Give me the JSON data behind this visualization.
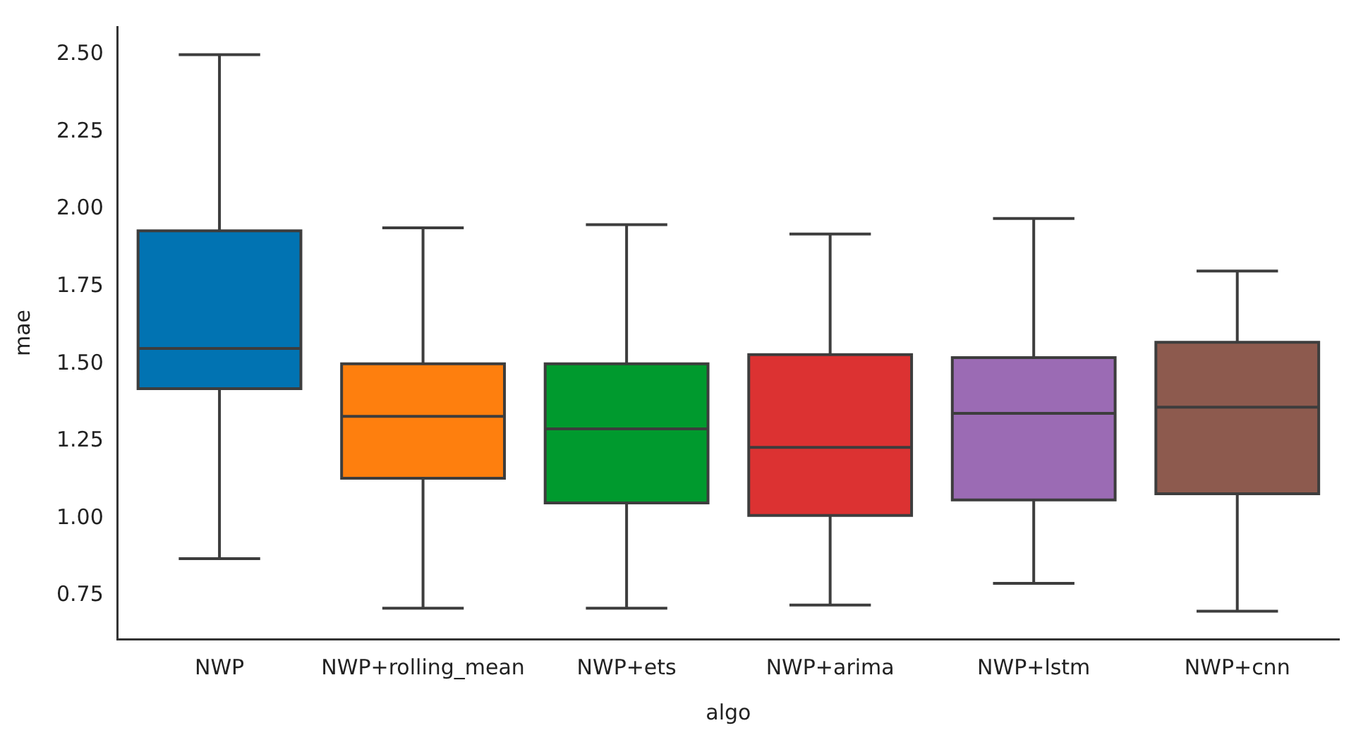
{
  "chart_data": {
    "type": "box",
    "xlabel": "algo",
    "ylabel": "mae",
    "categories": [
      "NWP",
      "NWP+rolling_mean",
      "NWP+ets",
      "NWP+arima",
      "NWP+lstm",
      "NWP+cnn"
    ],
    "colors": [
      "#0173b2",
      "#fe7f0e",
      "#009a2e",
      "#dc3232",
      "#9b6bb4",
      "#8d5a4e"
    ],
    "boxes": [
      {
        "low": 0.87,
        "q1": 1.42,
        "median": 1.55,
        "q3": 1.93,
        "high": 2.5
      },
      {
        "low": 0.71,
        "q1": 1.13,
        "median": 1.33,
        "q3": 1.5,
        "high": 1.94
      },
      {
        "low": 0.71,
        "q1": 1.05,
        "median": 1.29,
        "q3": 1.5,
        "high": 1.95
      },
      {
        "low": 0.72,
        "q1": 1.01,
        "median": 1.23,
        "q3": 1.53,
        "high": 1.92
      },
      {
        "low": 0.79,
        "q1": 1.06,
        "median": 1.34,
        "q3": 1.52,
        "high": 1.97
      },
      {
        "low": 0.7,
        "q1": 1.08,
        "median": 1.36,
        "q3": 1.57,
        "high": 1.8
      }
    ],
    "ylim": [
      0.61,
      2.59
    ],
    "yticks": [
      {
        "value": 0.75,
        "label": "0.75"
      },
      {
        "value": 1,
        "label": "1.00"
      },
      {
        "value": 1.25,
        "label": "1.25"
      },
      {
        "value": 1.5,
        "label": "1.50"
      },
      {
        "value": 1.75,
        "label": "1.75"
      },
      {
        "value": 2,
        "label": "2.00"
      },
      {
        "value": 2.25,
        "label": "2.25"
      },
      {
        "value": 2.5,
        "label": "2.50"
      }
    ],
    "tick_labels": null
  }
}
